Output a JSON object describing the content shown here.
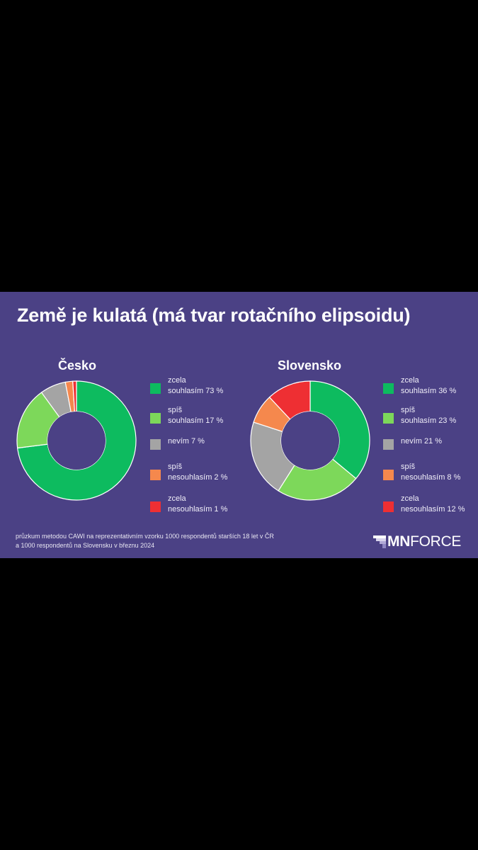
{
  "title": "Země je kulatá (má tvar rotačního elipsoidu)",
  "footnote_line1": "průzkum metodou CAWI na reprezentativním vzorku 1000 respondentů starších 18 let v ČR",
  "footnote_line2": "a 1000 respondentů na Slovensku v březnu 2024",
  "logo": {
    "bold": "MN",
    "regular": "FORCE"
  },
  "colors": {
    "background": "#4b4185",
    "zcela_souhlasim": "#0dbb5f",
    "spis_souhlasim": "#7dd85a",
    "nevim": "#a4a4a4",
    "spis_nesouhlasim": "#f5884d",
    "zcela_nesouhlasim": "#ee2f33"
  },
  "chart_data": [
    {
      "type": "pie",
      "title": "Česko",
      "categories": [
        "zcela souhlasím",
        "spíš souhlasím",
        "nevím",
        "spíš nesouhlasím",
        "zcela nesouhlasím"
      ],
      "values": [
        73,
        17,
        7,
        2,
        1
      ],
      "legend_lines": [
        [
          "zcela",
          "souhlasím 73 %"
        ],
        [
          "spíš",
          "souhlasím 17 %"
        ],
        [
          "nevím 7 %"
        ],
        [
          "spíš",
          "nesouhlasím 2 %"
        ],
        [
          "zcela",
          "nesouhlasím 1 %"
        ]
      ]
    },
    {
      "type": "pie",
      "title": "Slovensko",
      "categories": [
        "zcela souhlasím",
        "spíš souhlasím",
        "nevím",
        "spíš nesouhlasím",
        "zcela nesouhlasím"
      ],
      "values": [
        36,
        23,
        21,
        8,
        12
      ],
      "legend_lines": [
        [
          "zcela",
          "souhlasím 36 %"
        ],
        [
          "spíš",
          "souhlasím 23 %"
        ],
        [
          "nevím 21 %"
        ],
        [
          "spíš",
          "nesouhlasím 8 %"
        ],
        [
          "zcela",
          "nesouhlasím 12 %"
        ]
      ]
    }
  ]
}
